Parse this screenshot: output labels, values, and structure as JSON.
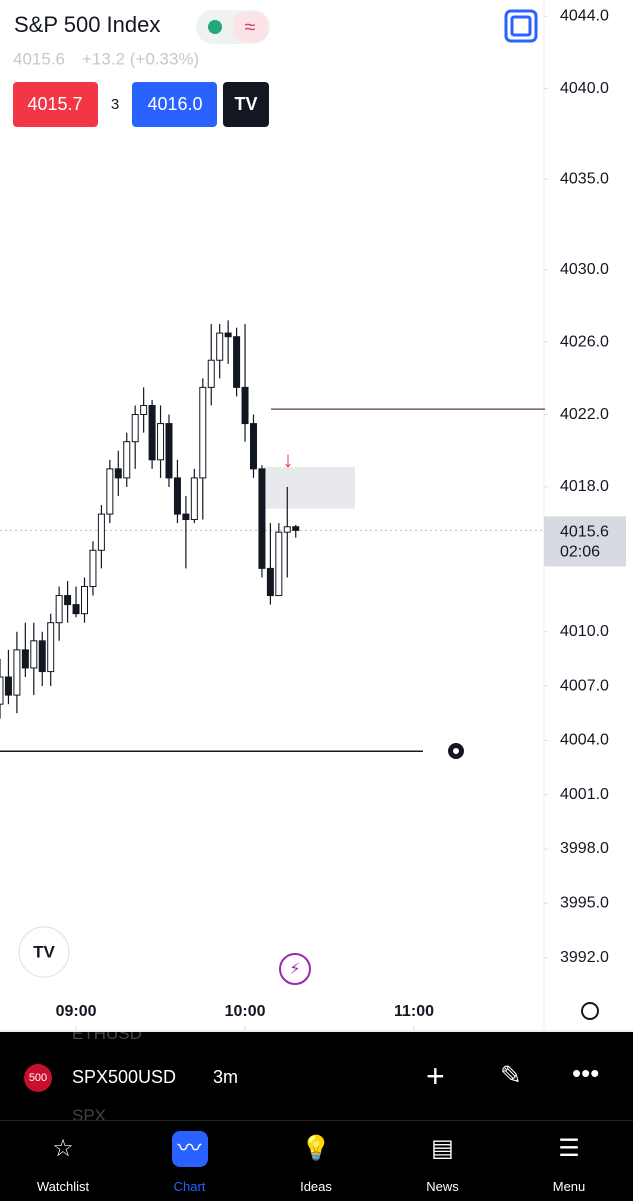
{
  "header": {
    "title": "S&P 500 Index",
    "last": "4015.6",
    "change": "+13.2 (+0.33%)",
    "sell": "4015.7",
    "spread": "3",
    "buy": "4016.0"
  },
  "chart_data": {
    "type": "candlestick",
    "open": [
      4006,
      4007.5,
      4006.5,
      4009,
      4008,
      4009.5,
      4007.8,
      4010.5,
      4012,
      4011.5,
      4011,
      4012.5,
      4014.5,
      4016.5,
      4019,
      4018.5,
      4020.5,
      4022,
      4022.5,
      4019.5,
      4021.5,
      4018.5,
      4016.5,
      4016.2,
      4018.5,
      4023.5,
      4025,
      4026.5,
      4026.3,
      4023.5,
      4021.5,
      4019,
      4013.5,
      4012,
      4015.5,
      4015.8
    ],
    "high": [
      4008.5,
      4009,
      4010,
      4010.5,
      4010.5,
      4010,
      4011,
      4012.5,
      4012.8,
      4012.5,
      4013,
      4015,
      4017,
      4019.5,
      4020,
      4021,
      4022.5,
      4023.5,
      4022.8,
      4022.5,
      4022,
      4019.5,
      4017.5,
      4019,
      4024,
      4027,
      4027,
      4027.2,
      4026.8,
      4027,
      4022,
      4019.2,
      4016,
      4016,
      4018,
      4015.9
    ],
    "low": [
      4005.2,
      4006,
      4005.5,
      4007.5,
      4006.5,
      4007,
      4007,
      4009.5,
      4010.5,
      4010.8,
      4010.5,
      4012,
      4013.5,
      4016,
      4017.5,
      4018,
      4019,
      4021,
      4019,
      4018.5,
      4018,
      4016,
      4013.5,
      4016,
      4016.2,
      4022.5,
      4024,
      4024.8,
      4023,
      4020.5,
      4018.5,
      4013,
      4011.5,
      4012,
      4013,
      4015.2
    ],
    "close": [
      4007.5,
      4006.5,
      4009,
      4008,
      4009.5,
      4007.8,
      4010.5,
      4012,
      4011.5,
      4011,
      4012.5,
      4014.5,
      4016.5,
      4019,
      4018.5,
      4020.5,
      4022,
      4022.5,
      4019.5,
      4021.5,
      4018.5,
      4016.5,
      4016.2,
      4018.5,
      4023.5,
      4025,
      4026.5,
      4026.3,
      4023.5,
      4021.5,
      4019,
      4013.5,
      4012,
      4015.5,
      4015.8,
      4015.6
    ],
    "xlim": [
      0,
      64.5
    ],
    "xticks": [
      {
        "value": 9,
        "label": "09:00"
      },
      {
        "value": 29,
        "label": "10:00"
      },
      {
        "value": 49,
        "label": "11:00"
      }
    ],
    "ylim": [
      3988,
      4044.9
    ],
    "yticks": [
      {
        "value": 4044,
        "label": "4044.0"
      },
      {
        "value": 4040,
        "label": "4040.0"
      },
      {
        "value": 4035,
        "label": "4035.0"
      },
      {
        "value": 4030,
        "label": "4030.0"
      },
      {
        "value": 4026,
        "label": "4026.0"
      },
      {
        "value": 4022,
        "label": "4022.0"
      },
      {
        "value": 4018,
        "label": "4018.0"
      },
      {
        "value": 4010,
        "label": "4010.0"
      },
      {
        "value": 4007,
        "label": "4007.0"
      },
      {
        "value": 4004,
        "label": "4004.0"
      },
      {
        "value": 4001,
        "label": "4001.0"
      },
      {
        "value": 3998,
        "label": "3998.0"
      },
      {
        "value": 3995,
        "label": "3995.0"
      },
      {
        "value": 3992,
        "label": "3992.0"
      }
    ],
    "last_price": 4015.6,
    "countdown": "02:06",
    "horizontal_lines": [
      4022.3,
      4003.4
    ],
    "zone": [
      4016.8,
      4019.1
    ]
  },
  "toolbar": {
    "badge": "500",
    "symbol": "SPX500USD",
    "interval": "3m",
    "ghost_above": "ETHUSD",
    "ghost_below": "SPX"
  },
  "nav": [
    "Watchlist",
    "Chart",
    "Ideas",
    "News",
    "Menu"
  ]
}
